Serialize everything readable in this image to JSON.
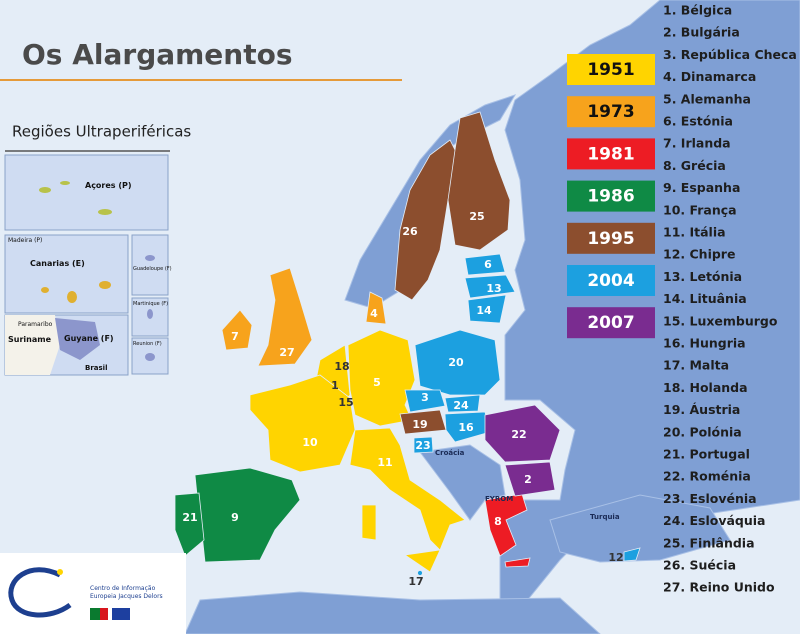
{
  "header": {
    "title": "Os Alargamentos",
    "subtitle": "Regiões Ultraperiféricas"
  },
  "insets": [
    "Açores (P)",
    "Madeira (P)",
    "Canarias (E)",
    "Guadeloupe (F)",
    "Martinique (F)",
    "Reunion (F)",
    "Paramaribo",
    "Suriname",
    "Guyane (F)",
    "Brasil"
  ],
  "legend": [
    {
      "label": "1951",
      "color": "#ffd400"
    },
    {
      "label": "1973",
      "color": "#f7a31c"
    },
    {
      "label": "1981",
      "color": "#ed1c24"
    },
    {
      "label": "1986",
      "color": "#0f8a45"
    },
    {
      "label": "1995",
      "color": "#8c4e2e"
    },
    {
      "label": "2004",
      "color": "#1ca0e0"
    },
    {
      "label": "2007",
      "color": "#7a2c90"
    }
  ],
  "countries": [
    "1. Bélgica",
    "2. Bulgária",
    "3. República Checa",
    "4. Dinamarca",
    "5. Alemanha",
    "6. Estónia",
    "7. Irlanda",
    "8. Grécia",
    "9. Espanha",
    "10. França",
    "11. Itália",
    "12. Chipre",
    "13. Letónia",
    "14. Lituânia",
    "15. Luxemburgo",
    "16. Hungria",
    "17. Malta",
    "18. Holanda",
    "19. Áustria",
    "20. Polónia",
    "21. Portugal",
    "22. Roménia",
    "23. Eslovénia",
    "24. Eslováquia",
    "25. Finlândia",
    "26. Suécia",
    "27. Reino Unido"
  ],
  "map_labels": [
    "26",
    "25",
    "27",
    "7",
    "4",
    "5",
    "18",
    "1",
    "15",
    "10",
    "11",
    "9",
    "21",
    "8",
    "19",
    "20",
    "3",
    "24",
    "16",
    "23",
    "6",
    "13",
    "14",
    "12",
    "17",
    "22",
    "2"
  ],
  "places": [
    "Croácia",
    "FYROM",
    "Turquia"
  ],
  "logo": [
    "Centro de Informação",
    "Europeia Jacques Delors"
  ]
}
